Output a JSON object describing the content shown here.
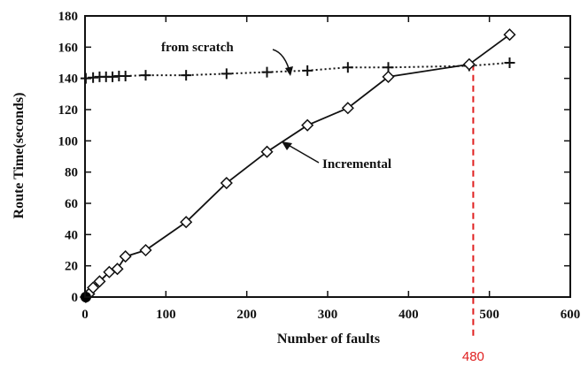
{
  "chart_data": {
    "type": "line",
    "xlabel": "Number of faults",
    "ylabel": "Route Time(seconds)",
    "xlim": [
      0,
      600
    ],
    "ylim": [
      0,
      180
    ],
    "xticks": [
      "0",
      "100",
      "200",
      "300",
      "400",
      "500",
      "600"
    ],
    "yticks": [
      "0",
      "20",
      "40",
      "60",
      "80",
      "100",
      "120",
      "140",
      "160",
      "180"
    ],
    "grid": false,
    "series": [
      {
        "name": "from scratch",
        "line_style": "dotted",
        "marker": "plus",
        "x": [
          1,
          10,
          18,
          26,
          34,
          42,
          50,
          75,
          125,
          175,
          225,
          275,
          325,
          375,
          475,
          525
        ],
        "y": [
          140,
          140.5,
          141,
          141,
          141,
          141.5,
          141.5,
          142,
          142,
          143,
          144,
          145,
          147,
          147,
          148,
          150
        ]
      },
      {
        "name": "Incremental",
        "line_style": "solid",
        "marker": "diamond",
        "x": [
          1,
          3,
          5,
          10,
          18,
          30,
          40,
          50,
          75,
          125,
          175,
          225,
          275,
          325,
          375,
          475,
          525
        ],
        "y": [
          0,
          1,
          2,
          6,
          10,
          16,
          18,
          26,
          30,
          48,
          73,
          93,
          110,
          121,
          141,
          149,
          168
        ]
      }
    ],
    "reference_line": {
      "x": 480,
      "label": "480",
      "color": "#e02020"
    },
    "origin_marker_color": "#000000"
  }
}
